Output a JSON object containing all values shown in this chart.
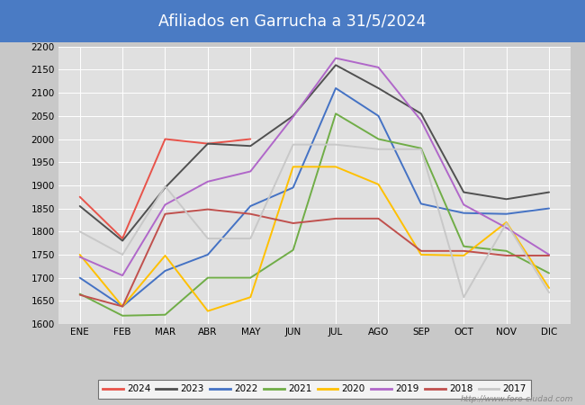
{
  "title": "Afiliados en Garrucha a 31/5/2024",
  "title_bg_color": "#4a7bc4",
  "title_text_color": "white",
  "ylim": [
    1600,
    2200
  ],
  "yticks": [
    1600,
    1650,
    1700,
    1750,
    1800,
    1850,
    1900,
    1950,
    2000,
    2050,
    2100,
    2150,
    2200
  ],
  "months": [
    "ENE",
    "FEB",
    "MAR",
    "ABR",
    "MAY",
    "JUN",
    "JUL",
    "AGO",
    "SEP",
    "OCT",
    "NOV",
    "DIC"
  ],
  "outer_bg_color": "#c8c8c8",
  "plot_bg_color": "#e0e0e0",
  "watermark": "http://www.foro-ciudad.com",
  "series": {
    "2024": {
      "color": "#e8534a",
      "data": [
        1875,
        1785,
        2000,
        1990,
        2000,
        null,
        null,
        null,
        null,
        null,
        null,
        null
      ]
    },
    "2023": {
      "color": "#505050",
      "data": [
        1855,
        1780,
        1895,
        1990,
        1985,
        2050,
        2160,
        2110,
        2055,
        1885,
        1870,
        1885
      ]
    },
    "2022": {
      "color": "#4472c4",
      "data": [
        1700,
        1638,
        1715,
        1750,
        1855,
        1895,
        2110,
        2050,
        1860,
        1840,
        1838,
        1850
      ]
    },
    "2021": {
      "color": "#70ad47",
      "data": [
        1665,
        1618,
        1620,
        1700,
        1700,
        1760,
        2055,
        2000,
        1980,
        1768,
        1758,
        1710
      ]
    },
    "2020": {
      "color": "#ffc000",
      "data": [
        1750,
        1638,
        1748,
        1628,
        1658,
        1940,
        1940,
        1902,
        1750,
        1748,
        1820,
        1678
      ]
    },
    "2019": {
      "color": "#b067c9",
      "data": [
        1745,
        1705,
        1858,
        1908,
        1930,
        2048,
        2175,
        2155,
        2040,
        1858,
        1808,
        1750
      ]
    },
    "2018": {
      "color": "#c0504d",
      "data": [
        1663,
        1638,
        1838,
        1848,
        1838,
        1818,
        1828,
        1828,
        1758,
        1758,
        1748,
        1748
      ]
    },
    "2017": {
      "color": "#c8c8c8",
      "data": [
        1800,
        1750,
        1898,
        1785,
        1785,
        1988,
        1988,
        1978,
        1978,
        1658,
        1818,
        1668
      ]
    }
  },
  "legend_order": [
    "2024",
    "2023",
    "2022",
    "2021",
    "2020",
    "2019",
    "2018",
    "2017"
  ]
}
